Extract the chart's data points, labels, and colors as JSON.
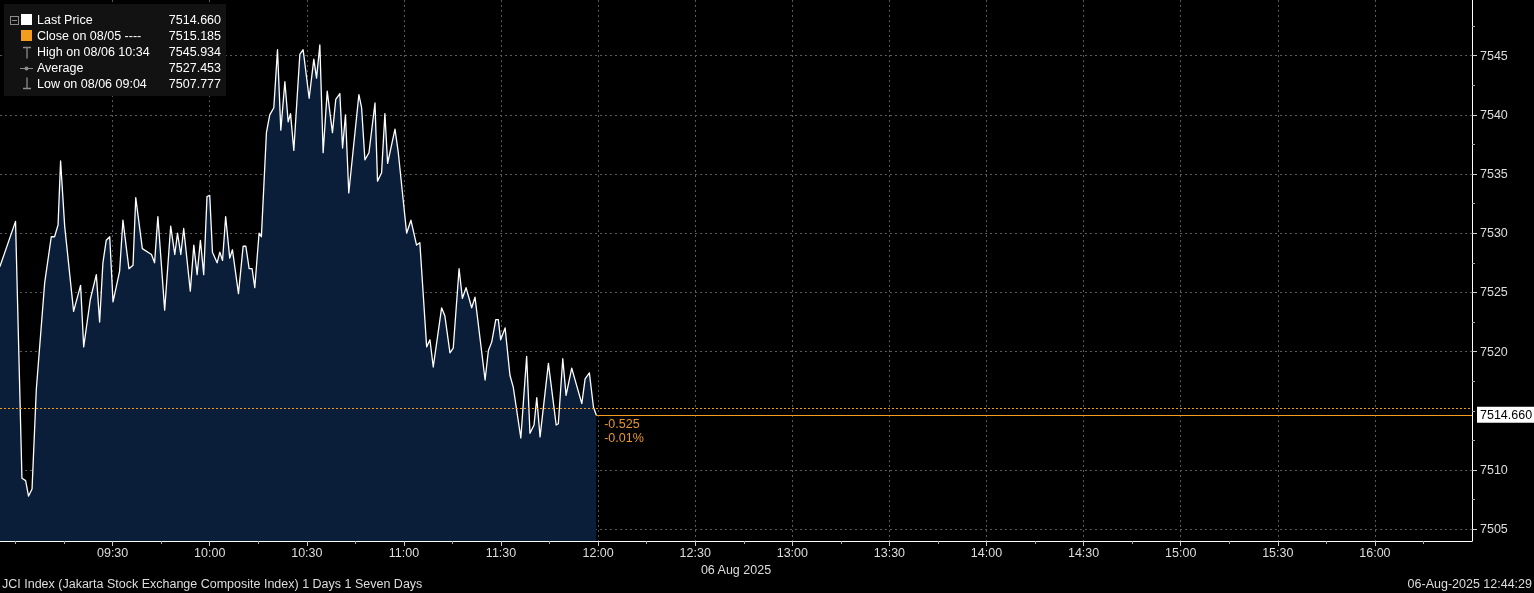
{
  "chart_data": {
    "type": "area",
    "title": "JCI Index (Jakarta Stock Exchange Composite Index) 1 Days 1 Seven Days",
    "subtitle": "06-Aug-2025 12:44:29",
    "xlabel": "06 Aug 2025",
    "series": [
      {
        "name": "Last Price",
        "color": "#ffffff",
        "x": [
          8.92,
          9.0,
          9.033,
          9.052,
          9.067,
          9.085,
          9.107,
          9.15,
          9.184,
          9.201,
          9.219,
          9.232,
          9.253,
          9.299,
          9.335,
          9.351,
          9.385,
          9.416,
          9.433,
          9.45,
          9.467,
          9.485,
          9.502,
          9.536,
          9.553,
          9.584,
          9.605,
          9.619,
          9.653,
          9.7,
          9.716,
          9.733,
          9.768,
          9.799,
          9.82,
          9.834,
          9.851,
          9.866,
          9.9,
          9.918,
          9.935,
          9.952,
          9.969,
          9.986,
          10.0,
          10.014,
          10.038,
          10.052,
          10.066,
          10.082,
          10.103,
          10.117,
          10.148,
          10.172,
          10.186,
          10.203,
          10.218,
          10.232,
          10.254,
          10.266,
          10.292,
          10.309,
          10.33,
          10.349,
          10.366,
          10.387,
          10.404,
          10.416,
          10.433,
          10.464,
          10.481,
          10.512,
          10.536,
          10.55,
          10.567,
          10.584,
          10.605,
          10.632,
          10.649,
          10.67,
          10.684,
          10.699,
          10.716,
          10.768,
          10.782,
          10.799,
          10.82,
          10.851,
          10.864,
          10.885,
          10.902,
          10.916,
          10.954,
          10.971,
          11.014,
          11.036,
          11.065,
          11.082,
          11.117,
          11.134,
          11.151,
          11.194,
          11.211,
          11.237,
          11.254,
          11.284,
          11.301,
          11.32,
          11.349,
          11.366,
          11.418,
          11.435,
          11.452,
          11.473,
          11.486,
          11.498,
          11.521,
          11.546,
          11.563,
          11.602,
          11.632,
          11.649,
          11.67,
          11.684,
          11.701,
          11.744,
          11.784,
          11.795,
          11.818,
          11.835,
          11.864,
          11.916,
          11.933,
          11.955,
          11.976,
          11.99
        ],
        "values": [
          7527.2,
          7531.0,
          7509.3,
          7509.1,
          7507.8,
          7508.4,
          7516.8,
          7525.8,
          7529.7,
          7529.7,
          7530.7,
          7536.1,
          7530.6,
          7523.4,
          7525.6,
          7520.4,
          7524.4,
          7526.5,
          7522.5,
          7527.5,
          7529.4,
          7529.7,
          7524.2,
          7526.8,
          7531.1,
          7527.0,
          7527.3,
          7533.0,
          7528.7,
          7528.2,
          7527.5,
          7531.4,
          7523.5,
          7530.6,
          7528.2,
          7530.0,
          7528.2,
          7530.4,
          7525.1,
          7529.0,
          7526.5,
          7529.4,
          7526.5,
          7533.1,
          7533.2,
          7528.4,
          7527.5,
          7528.4,
          7527.7,
          7531.4,
          7527.9,
          7528.6,
          7524.9,
          7528.9,
          7528.9,
          7527.0,
          7527.0,
          7525.4,
          7530.0,
          7529.7,
          7538.5,
          7540.0,
          7540.6,
          7545.5,
          7538.7,
          7542.8,
          7539.4,
          7540.1,
          7537.0,
          7545.1,
          7545.5,
          7541.4,
          7544.7,
          7543.1,
          7545.9,
          7536.8,
          7542.0,
          7538.5,
          7541.3,
          7541.8,
          7537.2,
          7540.0,
          7533.4,
          7541.7,
          7540.6,
          7536.2,
          7536.8,
          7541.0,
          7534.4,
          7535.1,
          7540.1,
          7535.9,
          7538.8,
          7536.8,
          7530.0,
          7531.1,
          7529.0,
          7529.2,
          7520.4,
          7521.0,
          7518.7,
          7523.7,
          7523.0,
          7519.9,
          7520.3,
          7527.0,
          7524.5,
          7525.4,
          7523.7,
          7524.6,
          7517.6,
          7520.1,
          7520.8,
          7522.7,
          7522.7,
          7521.0,
          7522.0,
          7518.0,
          7517.0,
          7512.7,
          7519.6,
          7513.1,
          7513.8,
          7516.1,
          7512.8,
          7519.0,
          7513.8,
          7513.9,
          7519.4,
          7516.3,
          7518.6,
          7515.6,
          7517.7,
          7518.2,
          7515.3,
          7514.66
        ]
      }
    ],
    "xlim": [
      8.92,
      16.5
    ],
    "xticks": [
      {
        "value": 9,
        "label": null
      },
      {
        "value": 9.25,
        "label": null
      },
      {
        "value": 9.5,
        "label": "09:30"
      },
      {
        "value": 9.75,
        "label": null
      },
      {
        "value": 10,
        "label": "10:00"
      },
      {
        "value": 10.25,
        "label": null
      },
      {
        "value": 10.5,
        "label": "10:30"
      },
      {
        "value": 10.75,
        "label": null
      },
      {
        "value": 11,
        "label": "11:00"
      },
      {
        "value": 11.25,
        "label": null
      },
      {
        "value": 11.5,
        "label": "11:30"
      },
      {
        "value": 11.75,
        "label": null
      },
      {
        "value": 12,
        "label": "12:00"
      },
      {
        "value": 12.25,
        "label": null
      },
      {
        "value": 12.5,
        "label": "12:30"
      },
      {
        "value": 12.75,
        "label": null
      },
      {
        "value": 13,
        "label": "13:00"
      },
      {
        "value": 13.25,
        "label": null
      },
      {
        "value": 13.5,
        "label": "13:30"
      },
      {
        "value": 13.75,
        "label": null
      },
      {
        "value": 14,
        "label": "14:00"
      },
      {
        "value": 14.25,
        "label": null
      },
      {
        "value": 14.5,
        "label": "14:30"
      },
      {
        "value": 14.75,
        "label": null
      },
      {
        "value": 15,
        "label": "15:00"
      },
      {
        "value": 15.25,
        "label": null
      },
      {
        "value": 15.5,
        "label": "15:30"
      },
      {
        "value": 15.75,
        "label": null
      },
      {
        "value": 16,
        "label": "16:00"
      },
      {
        "value": 16.25,
        "label": null
      }
    ],
    "ylim": [
      7504,
      7549.7
    ],
    "yticks": [
      7505,
      {
        "value": 7507.5,
        "label": null
      },
      7510,
      {
        "value": 7512.5,
        "label": null
      },
      {
        "value": 7515,
        "label": null
      },
      {
        "value": 7517.5,
        "label": null
      },
      7520,
      {
        "value": 7522.5,
        "label": null
      },
      7525,
      {
        "value": 7527.5,
        "label": null
      },
      7530,
      {
        "value": 7532.5,
        "label": null
      },
      7535,
      {
        "value": 7537.5,
        "label": null
      },
      7540,
      {
        "value": 7542.5,
        "label": null
      },
      7545,
      {
        "value": 7547.5,
        "label": null
      }
    ],
    "grid": true,
    "legend": "top left",
    "ref_lines": [
      {
        "axis": "y",
        "value": 7515.185,
        "label": "Close on 08/05 ---- 7515.185",
        "color": "#f39c1e",
        "line_style": "dotted"
      },
      {
        "axis": "y",
        "value": 7514.66,
        "label": "7514.660",
        "color": "#f39c1e",
        "line_style": "solid"
      }
    ],
    "annotations": [
      "High on 08/06 10:34 7545.934",
      "Average 7527.453",
      "Low on 08/06 09:04 7507.777",
      {
        "text": "-0.525",
        "x": 11.99,
        "y": 7514.66
      },
      {
        "text": "-0.01%",
        "x": 11.99,
        "y": 7514.66
      }
    ]
  }
}
